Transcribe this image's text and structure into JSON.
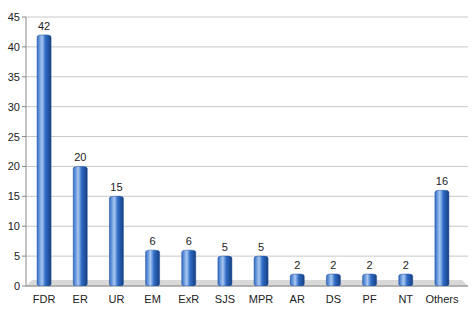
{
  "chart_data": {
    "type": "bar",
    "categories": [
      "FDR",
      "ER",
      "UR",
      "EM",
      "ExR",
      "SJS",
      "MPR",
      "AR",
      "DS",
      "PF",
      "NT",
      "Others"
    ],
    "values": [
      42,
      20,
      15,
      6,
      6,
      5,
      5,
      2,
      2,
      2,
      2,
      16
    ],
    "color": "#2f6cc6",
    "ylim": [
      0,
      45
    ],
    "yticks": [
      0,
      5,
      10,
      15,
      20,
      25,
      30,
      35,
      40,
      45
    ],
    "grid": true,
    "data_labels": true
  }
}
